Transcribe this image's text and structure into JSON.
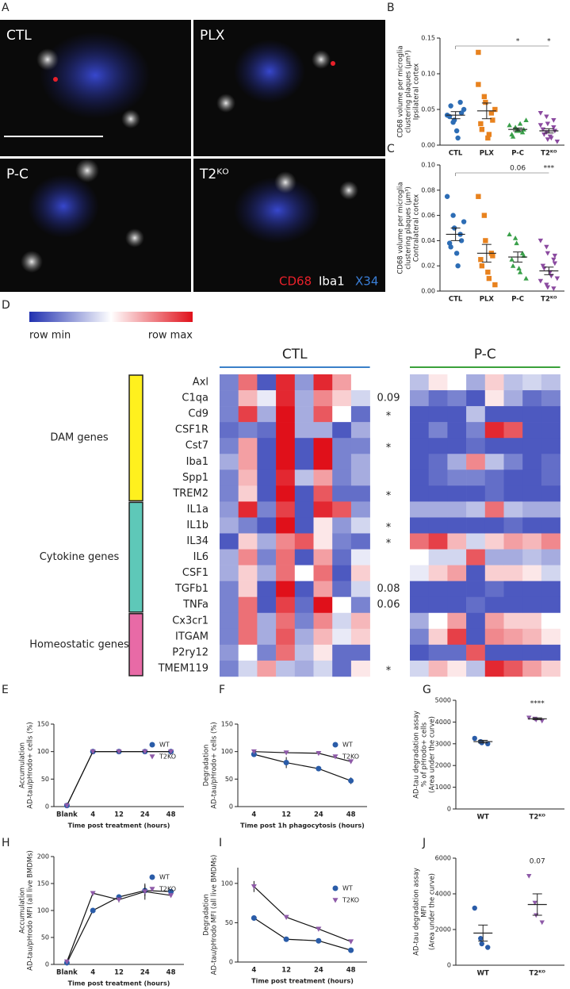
{
  "panel_letters": [
    "A",
    "B",
    "C",
    "D",
    "E",
    "F",
    "G",
    "H",
    "I",
    "J"
  ],
  "micrographs": {
    "labels": [
      "CTL",
      "PLX",
      "P-C",
      "T2ᴷᴼ"
    ],
    "legend": [
      {
        "text": "CD68",
        "color": "#e8202a"
      },
      {
        "text": "Iba1",
        "color": "#ffffff"
      },
      {
        "text": "X34",
        "color": "#3a7fd8"
      }
    ]
  },
  "chart_data": [
    {
      "type": "dot",
      "categories": [
        "CTL",
        "PLX",
        "P-C",
        "T2ᴷᴼ"
      ],
      "colors": [
        "#2d6db5",
        "#e8821e",
        "#3aa04a",
        "#8b4aa0"
      ],
      "markers": [
        "circle",
        "square",
        "triangle-up",
        "triangle-down"
      ],
      "ylabel": [
        "CD68 volume per microglia",
        "clustering plaques (µm³)",
        "Ipsilateral cortex"
      ],
      "points": [
        [
          0.042,
          0.032,
          0.035,
          0.06,
          0.045,
          0.04,
          0.055,
          0.02,
          0.01,
          0.05
        ],
        [
          0.085,
          0.068,
          0.06,
          0.045,
          0.035,
          0.03,
          0.022,
          0.01,
          0.015,
          0.05,
          0.13
        ],
        [
          0.028,
          0.025,
          0.02,
          0.018,
          0.022,
          0.015,
          0.012,
          0.02,
          0.03,
          0.035
        ],
        [
          0.045,
          0.04,
          0.03,
          0.025,
          0.02,
          0.022,
          0.015,
          0.012,
          0.01,
          0.005,
          0.028,
          0.018,
          0.008,
          0.035
        ]
      ],
      "means": [
        0.042,
        0.048,
        0.022,
        0.02
      ],
      "errors": [
        0.005,
        0.011,
        0.002,
        0.003
      ],
      "significance": [
        null,
        null,
        "*",
        "*"
      ],
      "ylim": [
        0,
        0.15
      ],
      "yticks": [
        {
          "value": 0,
          "label": "0.00"
        },
        0.05,
        {
          "value": 0.1,
          "label": "0.10"
        },
        0.15
      ]
    },
    {
      "type": "dot",
      "categories": [
        "CTL",
        "PLX",
        "P-C",
        "T2ᴷᴼ"
      ],
      "colors": [
        "#2d6db5",
        "#e8821e",
        "#3aa04a",
        "#8b4aa0"
      ],
      "markers": [
        "circle",
        "square",
        "triangle-up",
        "triangle-down"
      ],
      "ylabel": [
        "CD68 volume per microglia",
        "clustering plaques (µm³)",
        "Contralateral cortex"
      ],
      "points": [
        [
          0.075,
          0.06,
          0.05,
          0.045,
          0.04,
          0.038,
          0.035,
          0.03,
          0.02,
          0.055
        ],
        [
          0.075,
          0.06,
          0.04,
          0.03,
          0.028,
          0.025,
          0.02,
          0.015,
          0.01,
          0.005
        ],
        [
          0.045,
          0.042,
          0.038,
          0.03,
          0.028,
          0.025,
          0.02,
          0.018,
          0.015,
          0.01
        ],
        [
          0.04,
          0.035,
          0.03,
          0.025,
          0.022,
          0.02,
          0.018,
          0.015,
          0.012,
          0.01,
          0.008,
          0.005,
          0.003,
          0.002,
          0.028
        ]
      ],
      "means": [
        0.045,
        0.03,
        0.027,
        0.016
      ],
      "errors": [
        0.005,
        0.007,
        0.004,
        0.003
      ],
      "significance": [
        null,
        null,
        "0.06",
        "***"
      ],
      "ylim": [
        0,
        0.1
      ],
      "yticks": [
        {
          "value": 0,
          "label": "0.00"
        },
        0.02,
        0.04,
        0.06,
        0.08,
        {
          "value": 0.1,
          "label": "0.10"
        }
      ]
    },
    {
      "type": "heatmap",
      "scale_labels": [
        "row min",
        "row max"
      ],
      "groups": [
        {
          "name": "CTL",
          "color": "#3a80c8",
          "size": 8
        },
        {
          "name": "P-C",
          "color": "#3aa13a",
          "size": 8
        }
      ],
      "rows": [
        "Axl",
        "C1qa",
        "Cd9",
        "CSF1R",
        "Cst7",
        "Iba1",
        "Spp1",
        "TREM2",
        "IL1a",
        "IL1b",
        "IL34",
        "IL6",
        "CSF1",
        "TGFb1",
        "TNFa",
        "Cx3cr1",
        "ITGAM",
        "P2ry12",
        "TMEM119"
      ],
      "annotations": [
        null,
        "0.09",
        "*",
        null,
        "*",
        null,
        null,
        "*",
        null,
        "*",
        "*",
        null,
        null,
        "0.08",
        "0.06",
        null,
        null,
        null,
        "*"
      ],
      "row_groups": [
        {
          "name": "DAM genes",
          "color": "#fff01e",
          "start": 0,
          "end": 7
        },
        {
          "name": "Cytokine genes",
          "color": "#5ec8b8",
          "start": 8,
          "end": 14
        },
        {
          "name": "Homeostatic genes",
          "color": "#e86aa6",
          "start": 15,
          "end": 18
        }
      ],
      "values": [
        [
          0.2,
          0.8,
          0.1,
          0.95,
          0.25,
          0.95,
          0.7,
          0.5,
          0.35,
          0.55,
          0.5,
          0.3,
          0.6,
          0.35,
          0.4,
          0.35
        ],
        [
          0.2,
          0.65,
          0.45,
          0.95,
          0.3,
          0.75,
          0.6,
          0.4,
          0.25,
          0.15,
          0.2,
          0.1,
          0.55,
          0.3,
          0.15,
          0.2
        ],
        [
          0.2,
          0.9,
          0.3,
          1,
          0.3,
          0.85,
          0.5,
          0.15,
          0.1,
          0.1,
          0.1,
          0.35,
          0.1,
          0.1,
          0.1,
          0.1
        ],
        [
          0.15,
          0.2,
          0.15,
          1,
          0.3,
          0.3,
          0.1,
          0.3,
          0.1,
          0.2,
          0.1,
          0.2,
          0.95,
          0.85,
          0.1,
          0.1
        ],
        [
          0.2,
          0.7,
          0.1,
          1,
          0.1,
          1,
          0.2,
          0.2,
          0.1,
          0.1,
          0.1,
          0.15,
          0.1,
          0.1,
          0.1,
          0.1
        ],
        [
          0.3,
          0.7,
          0.1,
          1,
          0.1,
          1,
          0.2,
          0.3,
          0.1,
          0.15,
          0.3,
          0.75,
          0.35,
          0.2,
          0.1,
          0.15
        ],
        [
          0.2,
          0.65,
          0.1,
          0.95,
          0.35,
          0.7,
          0.2,
          0.3,
          0.1,
          0.15,
          0.2,
          0.2,
          0.15,
          0.1,
          0.1,
          0.15
        ],
        [
          0.2,
          0.6,
          0.1,
          1,
          0.1,
          0.85,
          0.15,
          0.15,
          0.1,
          0.1,
          0.1,
          0.1,
          0.15,
          0.1,
          0.1,
          0.1
        ],
        [
          0.25,
          0.95,
          0.2,
          0.9,
          0.1,
          0.95,
          0.85,
          0.25,
          0.3,
          0.3,
          0.3,
          0.35,
          0.8,
          0.35,
          0.3,
          0.3
        ],
        [
          0.3,
          0.2,
          0.1,
          1,
          0.1,
          0.55,
          0.25,
          0.4,
          0.1,
          0.1,
          0.1,
          0.1,
          0.1,
          0.15,
          0.1,
          0.1
        ],
        [
          0.1,
          0.6,
          0.3,
          0.75,
          0.85,
          0.55,
          0.2,
          0.15,
          0.8,
          0.9,
          0.65,
          0.4,
          0.6,
          0.7,
          0.65,
          0.75
        ],
        [
          0.3,
          0.75,
          0.2,
          0.8,
          0.1,
          0.7,
          0.15,
          0.45,
          0.5,
          0.4,
          0.4,
          0.85,
          0.3,
          0.3,
          0.35,
          0.3
        ],
        [
          0.3,
          0.6,
          0.3,
          0.8,
          0.5,
          0.8,
          0.1,
          0.6,
          0.45,
          0.6,
          0.7,
          0.1,
          0.6,
          0.6,
          0.55,
          0.4
        ],
        [
          0.2,
          0.6,
          0.1,
          1,
          0.1,
          0.7,
          0.15,
          0.4,
          0.1,
          0.1,
          0.1,
          0.1,
          0.15,
          0.1,
          0.1,
          0.1
        ],
        [
          0.2,
          0.8,
          0.1,
          0.9,
          0.15,
          1,
          0.5,
          0.2,
          0.1,
          0.1,
          0.1,
          0.15,
          0.1,
          0.1,
          0.1,
          0.1
        ],
        [
          0.2,
          0.8,
          0.3,
          0.8,
          0.2,
          0.75,
          0.4,
          0.65,
          0.3,
          0.5,
          0.7,
          0.1,
          0.7,
          0.6,
          0.6,
          0.5
        ],
        [
          0.2,
          0.8,
          0.3,
          0.85,
          0.3,
          0.65,
          0.45,
          0.6,
          0.2,
          0.6,
          0.9,
          0.1,
          0.75,
          0.7,
          0.65,
          0.55
        ],
        [
          0.25,
          0.5,
          0.2,
          0.8,
          0.35,
          0.55,
          0.15,
          0.15,
          0.1,
          0.15,
          0.15,
          0.85,
          0.1,
          0.1,
          0.1,
          0.1
        ],
        [
          0.2,
          0.4,
          0.7,
          0.35,
          0.3,
          0.4,
          0.15,
          0.55,
          0.4,
          0.65,
          0.55,
          0.35,
          0.95,
          0.85,
          0.7,
          0.6
        ]
      ]
    },
    {
      "type": "line",
      "categories": [
        "Blank",
        "4",
        "12",
        "24",
        "48"
      ],
      "ylabel": [
        "Accumulation",
        "AD-tau/pHrodo+ cells (%)"
      ],
      "xlabel": "Time post treatment (hours)",
      "series": [
        {
          "name": "WT",
          "color": "#2a5ca8",
          "marker": "circle",
          "values": [
            2,
            100,
            100,
            100,
            100
          ]
        },
        {
          "name": "T2KO",
          "color": "#8e5aa8",
          "marker": "triangle-down",
          "values": [
            2,
            100,
            100,
            100,
            100
          ]
        }
      ],
      "ylim": [
        0,
        150
      ],
      "yticks": [
        0,
        50,
        100,
        150
      ]
    },
    {
      "type": "line",
      "categories": [
        "4",
        "12",
        "24",
        "48"
      ],
      "ylabel": [
        "Degradation",
        "AD-tau/pHrodo+ cells (%)"
      ],
      "xlabel": "Time post 1h phagocytosis (hours)",
      "series": [
        {
          "name": "WT",
          "color": "#2a5ca8",
          "marker": "circle",
          "values": [
            95,
            80,
            69,
            47
          ],
          "errors": [
            3,
            10,
            3,
            6
          ]
        },
        {
          "name": "T2KO",
          "color": "#8e5aa8",
          "marker": "triangle-down",
          "values": [
            100,
            98,
            97,
            82
          ],
          "errors": [
            1,
            1,
            1,
            2
          ]
        }
      ],
      "ylim": [
        0,
        150
      ],
      "yticks": [
        0,
        50,
        100,
        150
      ]
    },
    {
      "type": "dot",
      "categories": [
        "WT",
        "T2ᴷᴼ"
      ],
      "colors": [
        "#2a5ca8",
        "#8e5aa8"
      ],
      "markers": [
        "circle",
        "triangle-down"
      ],
      "ylabel": [
        "AD-tau degradation assay",
        "% of pHrodo+ cells",
        "(Area under the curve)"
      ],
      "points": [
        [
          3250,
          3100,
          3050,
          3000
        ],
        [
          4200,
          4150,
          4100,
          4050
        ]
      ],
      "means": [
        3100,
        4150
      ],
      "errors": [
        60,
        40
      ],
      "significance": [
        null,
        "****"
      ],
      "ylim": [
        0,
        5000
      ],
      "yticks": [
        0,
        1000,
        2000,
        3000,
        4000,
        5000
      ]
    },
    {
      "type": "line",
      "categories": [
        "Blank",
        "4",
        "12",
        "24",
        "48"
      ],
      "ylabel": [
        "Accumulation",
        "AD-tau/pHrodo MFI (all live BMDMs)"
      ],
      "xlabel": "Time post treatment (hours)",
      "series": [
        {
          "name": "WT",
          "color": "#2a5ca8",
          "marker": "circle",
          "values": [
            3,
            100,
            125,
            137,
            135
          ],
          "errors": [
            2,
            2,
            5,
            10,
            3
          ]
        },
        {
          "name": "T2KO",
          "color": "#8e5aa8",
          "marker": "triangle-down",
          "values": [
            5,
            132,
            120,
            135,
            128
          ],
          "errors": [
            2,
            2,
            5,
            15,
            3
          ]
        }
      ],
      "ylim": [
        0,
        200
      ],
      "yticks": [
        0,
        50,
        100,
        150,
        200
      ]
    },
    {
      "type": "line",
      "categories": [
        "4",
        "12",
        "24",
        "48"
      ],
      "ylabel": [
        "Degradation",
        "AD-tau/pHrodo MFI (all live BMDMs)"
      ],
      "xlabel": "Time post treatment (hours)",
      "series": [
        {
          "name": "WT",
          "color": "#2a5ca8",
          "marker": "circle",
          "values": [
            56,
            29,
            27,
            15
          ],
          "errors": [
            2,
            1,
            1,
            2
          ]
        },
        {
          "name": "T2KO",
          "color": "#8e5aa8",
          "marker": "triangle-down",
          "values": [
            96,
            57,
            42,
            26
          ],
          "errors": [
            7,
            2,
            1,
            1
          ]
        }
      ],
      "ylim": [
        0,
        120
      ],
      "yticks": [
        0,
        50,
        100
      ]
    },
    {
      "type": "dot",
      "categories": [
        "WT",
        "T2ᴷᴼ"
      ],
      "colors": [
        "#2a5ca8",
        "#8e5aa8"
      ],
      "markers": [
        "circle",
        "triangle-down"
      ],
      "ylabel": [
        "AD-tau degradation assay",
        "MFI",
        "(Area under the curve)"
      ],
      "points": [
        [
          3200,
          1500,
          1200,
          1000
        ],
        [
          5000,
          3500,
          2800,
          2400
        ]
      ],
      "means": [
        1800,
        3400
      ],
      "errors": [
        450,
        600
      ],
      "significance": [
        null,
        "0.07"
      ],
      "ylim": [
        0,
        6000
      ],
      "yticks": [
        0,
        2000,
        4000,
        6000
      ]
    }
  ]
}
